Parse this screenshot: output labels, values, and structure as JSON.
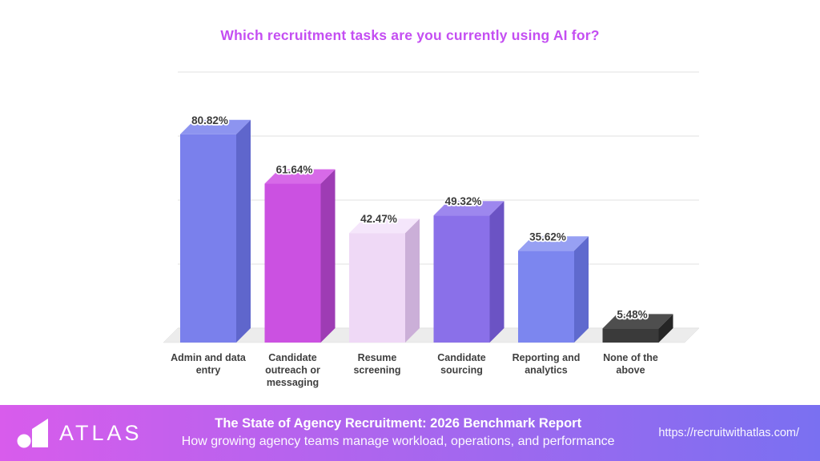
{
  "chart_data": {
    "type": "bar",
    "style": "3d-column",
    "title": "Which recruitment tasks are you currently using AI for?",
    "title_color": "#c44ef2",
    "categories": [
      "Admin and data entry",
      "Candidate outreach or messaging",
      "Resume screening",
      "Candidate sourcing",
      "Reporting and analytics",
      "None of the above"
    ],
    "category_lines": [
      [
        "Admin and data",
        "entry"
      ],
      [
        "Candidate",
        "outreach or",
        "messaging"
      ],
      [
        "Resume",
        "screening"
      ],
      [
        "Candidate",
        "sourcing"
      ],
      [
        "Reporting and",
        "analytics"
      ],
      [
        "None of the",
        "above"
      ]
    ],
    "values": [
      80.82,
      61.64,
      42.47,
      49.32,
      35.62,
      5.48
    ],
    "value_labels": [
      "80.82%",
      "61.64%",
      "42.47%",
      "49.32%",
      "35.62%",
      "5.48%"
    ],
    "unit": "%",
    "ylim": [
      0,
      100
    ],
    "grid": true,
    "legend": "none",
    "xlabel": "",
    "ylabel": "",
    "bar_colors": [
      {
        "front": "#7a80ec",
        "top": "#8d94f0",
        "side": "#5f66cc"
      },
      {
        "front": "#cb51e1",
        "top": "#d76ae8",
        "side": "#9e3cb4"
      },
      {
        "front": "#efd9f6",
        "top": "#f5e6fb",
        "side": "#cbafd8"
      },
      {
        "front": "#8a70e9",
        "top": "#9d87ee",
        "side": "#6b53c4"
      },
      {
        "front": "#7c86ef",
        "top": "#97a0f3",
        "side": "#5f6ace"
      },
      {
        "front": "#3a3a3a",
        "top": "#4e4e4e",
        "side": "#262626"
      }
    ],
    "value_label_color": "#3b3b3b",
    "category_label_color": "#3f3f3f",
    "gridline_color": "#e0e0e0",
    "floor_color": "#ececec"
  },
  "footer": {
    "brand": "ATLAS",
    "logo_icon": "atlas-dot-column-logo",
    "title": "The State of Agency Recruitment: 2026 Benchmark Report",
    "subtitle": "How growing agency teams manage workload, operations, and performance",
    "url": "https://recruitwithatlas.com/",
    "gradient_left": "#d85cec",
    "gradient_right": "#7a70f1"
  }
}
